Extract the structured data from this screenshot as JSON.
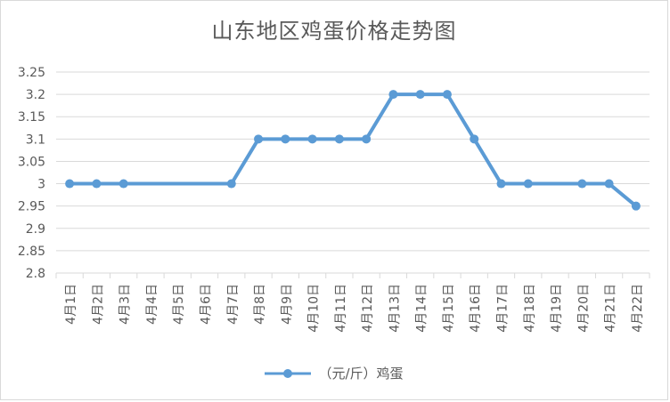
{
  "chart_data": {
    "type": "line",
    "title": "山东地区鸡蛋价格走势图",
    "xlabel": "",
    "ylabel": "",
    "categories": [
      "4月1日",
      "4月2日",
      "4月3日",
      "4月4日",
      "4月5日",
      "4月6日",
      "4月7日",
      "4月8日",
      "4月9日",
      "4月10日",
      "4月11日",
      "4月12日",
      "4月13日",
      "4月14日",
      "4月15日",
      "4月16日",
      "4月17日",
      "4月18日",
      "4月19日",
      "4月20日",
      "4月21日",
      "4月22日"
    ],
    "series": [
      {
        "name": "（元/斤）鸡蛋",
        "color": "#5b9bd5",
        "values": [
          3.0,
          3.0,
          3.0,
          null,
          null,
          null,
          3.0,
          3.1,
          3.1,
          3.1,
          3.1,
          3.1,
          3.2,
          3.2,
          3.2,
          3.1,
          3.0,
          3.0,
          null,
          3.0,
          3.0,
          2.95
        ]
      }
    ],
    "ylim": [
      2.8,
      3.25
    ],
    "yticks": [
      "2.8",
      "2.85",
      "2.9",
      "2.95",
      "3",
      "3.05",
      "3.1",
      "3.15",
      "3.2",
      "3.25"
    ],
    "grid": true,
    "legend_position": "bottom"
  }
}
